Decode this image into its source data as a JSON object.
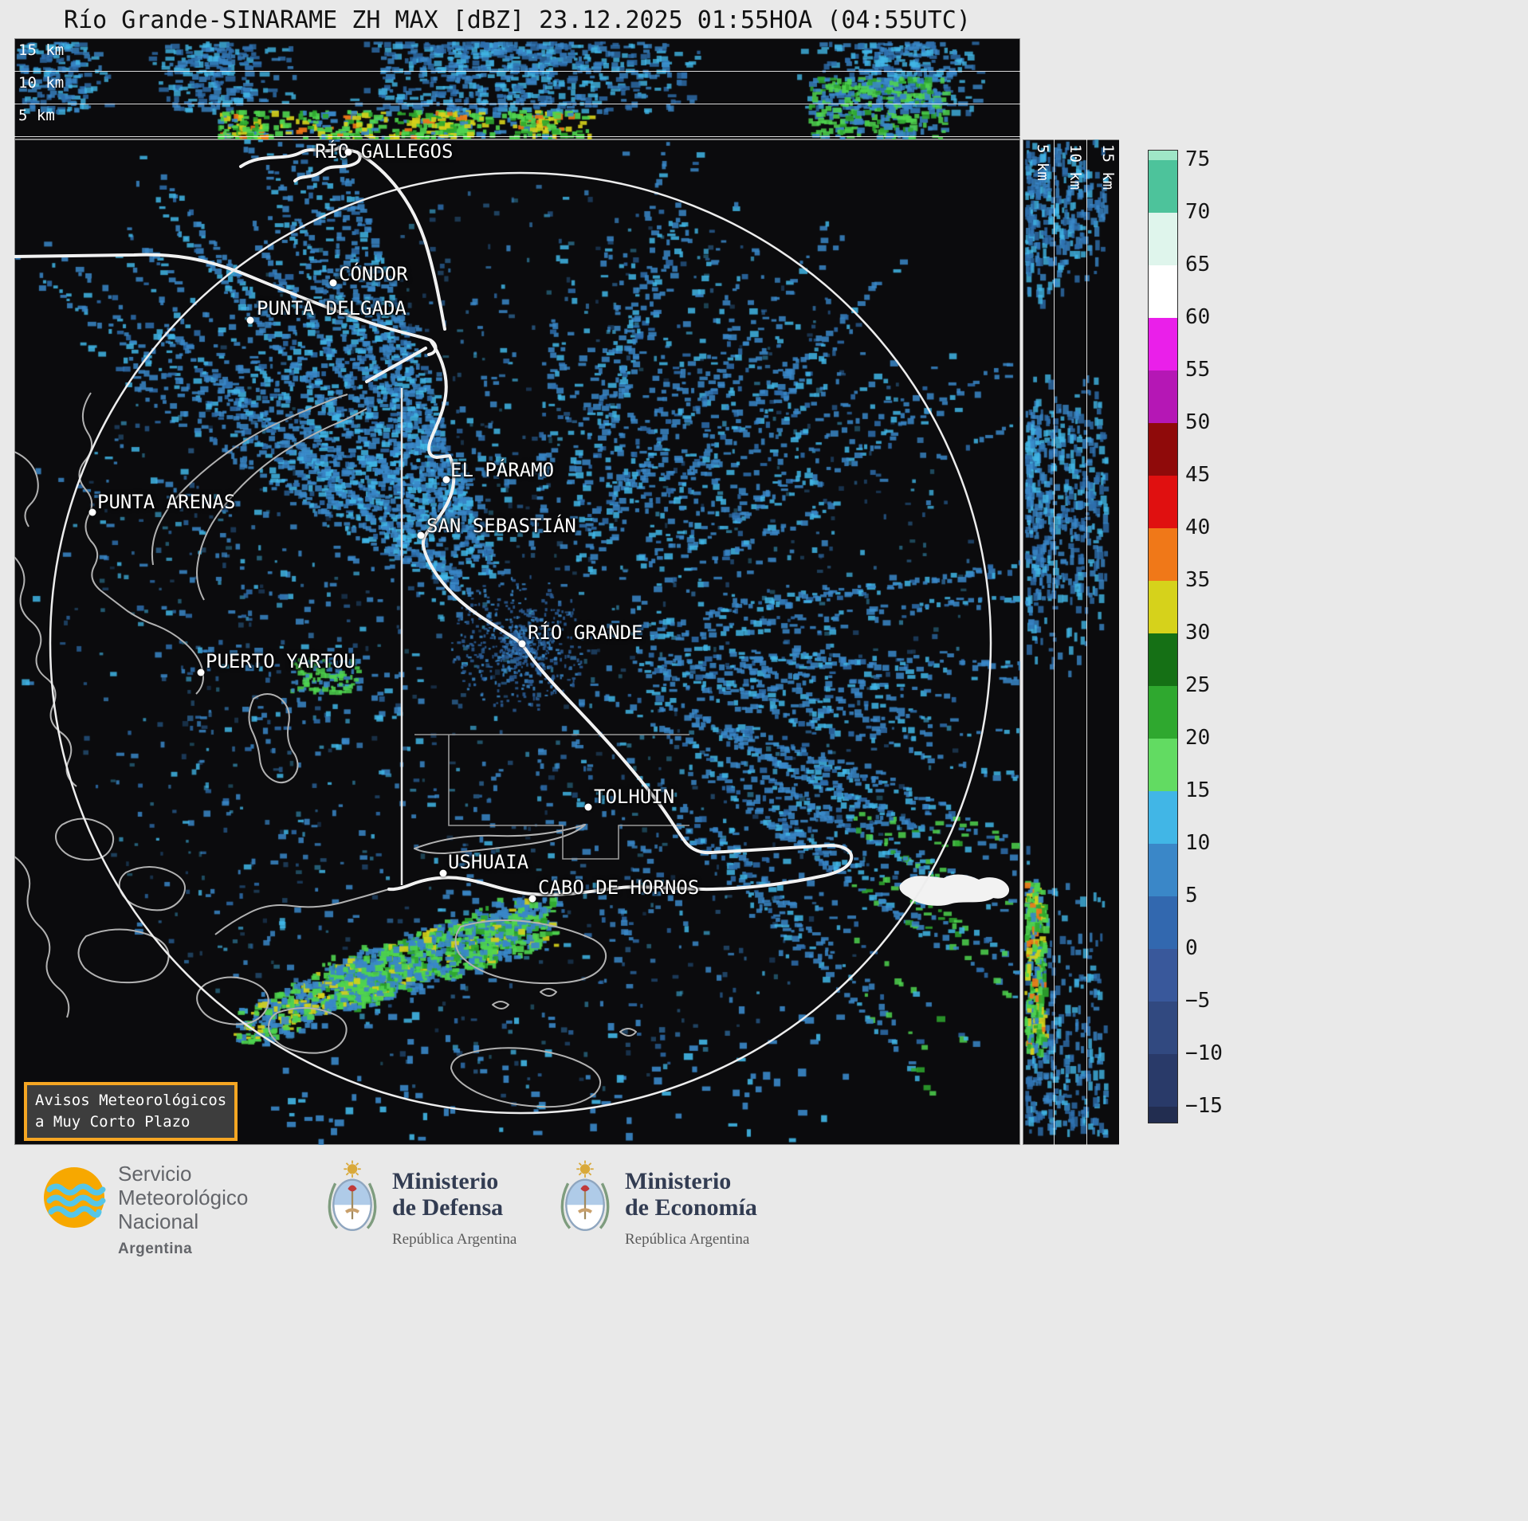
{
  "title": "Río Grande-SINARAME ZH MAX [dBZ] 23.12.2025 01:55HOA (04:55UTC)",
  "top_panel": {
    "km_labels": [
      "15 km",
      "10 km",
      "5 km"
    ]
  },
  "right_panel": {
    "km_labels": [
      "5 km",
      "10 km",
      "15 km"
    ]
  },
  "colorbar": {
    "tick_labels": [
      "75",
      "70",
      "65",
      "60",
      "55",
      "50",
      "45",
      "40",
      "35",
      "30",
      "25",
      "20",
      "15",
      "10",
      "5",
      "0",
      "−5",
      "−10",
      "−15"
    ],
    "colors_top_to_bottom": [
      "#9FE6C7",
      "#4DC39B",
      "#DFF5EC",
      "#FFFFFF",
      "#EA1FEA",
      "#B517B5",
      "#8F0A0A",
      "#E01010",
      "#F07818",
      "#D6D21B",
      "#157015",
      "#2FA82F",
      "#62DB62",
      "#41B6E6",
      "#3A87C8",
      "#3268AF",
      "#39589B",
      "#314980",
      "#293A69",
      "#222D50"
    ]
  },
  "cities": [
    {
      "name": "RÍO GALLEGOS",
      "label": [
        377,
        1
      ],
      "dot": [
        419,
        16
      ]
    },
    {
      "name": "CÓNDOR",
      "label": [
        407,
        155
      ],
      "dot": [
        400,
        180
      ]
    },
    {
      "name": "PUNTA DELGADA",
      "label": [
        304,
        198
      ],
      "dot": [
        296,
        227
      ]
    },
    {
      "name": "EL PÁRAMO",
      "label": [
        547,
        401
      ],
      "dot": [
        542,
        427
      ]
    },
    {
      "name": "SAN SEBASTIÁN",
      "label": [
        517,
        471
      ],
      "dot": [
        510,
        497
      ]
    },
    {
      "name": "PUNTA ARENAS",
      "label": [
        104,
        441
      ],
      "dot": [
        98,
        468
      ]
    },
    {
      "name": "RÍO GRANDE",
      "label": [
        644,
        605
      ],
      "dot": [
        637,
        633
      ]
    },
    {
      "name": "PUERTO YARTOU",
      "label": [
        240,
        641
      ],
      "dot": [
        234,
        669
      ]
    },
    {
      "name": "TOLHUIN",
      "label": [
        727,
        811
      ],
      "dot": [
        720,
        838
      ]
    },
    {
      "name": "USHUAIA",
      "label": [
        544,
        893
      ],
      "dot": [
        538,
        921
      ]
    },
    {
      "name": "CABO DE HORNOS",
      "label": [
        657,
        925
      ],
      "dot": [
        650,
        953
      ]
    }
  ],
  "warning_box": {
    "line1": "Avisos Meteorológicos",
    "line2": "a Muy Corto Plazo"
  },
  "footer": {
    "smn": {
      "lines": [
        "Servicio",
        "Meteorológico",
        "Nacional"
      ],
      "country": "Argentina"
    },
    "defensa": {
      "ministry": "Ministerio",
      "dept": "de Defensa",
      "sub": "República Argentina"
    },
    "economia": {
      "ministry": "Ministerio",
      "dept": "de Economía",
      "sub": "República Argentina"
    }
  },
  "palette": {
    "echo_deep": "#2E6FAE",
    "echo_blue": "#3A87C8",
    "echo_cyan": "#41B6E6",
    "echo_green": "#4FD44F",
    "echo_dark_green": "#2FA82F",
    "echo_yellow": "#D6D21B",
    "echo_orange": "#F07818",
    "warning_border": "#F5A623",
    "background": "#E9E9E9",
    "panel_bg": "#0B0B0D"
  }
}
